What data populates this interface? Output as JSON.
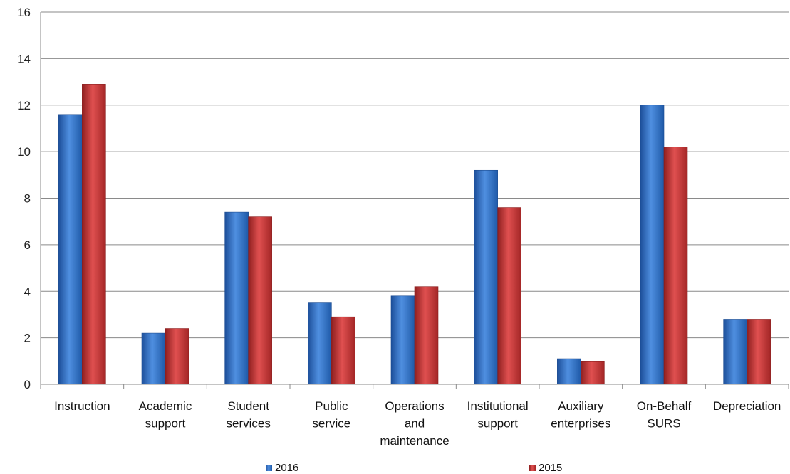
{
  "chart_data": {
    "type": "bar",
    "categories": [
      [
        "Instruction"
      ],
      [
        "Academic",
        "support"
      ],
      [
        "Student",
        "services"
      ],
      [
        "Public",
        "service"
      ],
      [
        "Operations",
        "and",
        "maintenance"
      ],
      [
        "Institutional",
        "support"
      ],
      [
        "Auxiliary",
        "enterprises"
      ],
      [
        "On-Behalf",
        "SURS"
      ],
      [
        "Depreciation"
      ]
    ],
    "series": [
      {
        "name": "2016",
        "color": "#3a78c8",
        "values": [
          11.6,
          2.2,
          7.4,
          3.5,
          3.8,
          9.2,
          1.1,
          12.0,
          2.8
        ]
      },
      {
        "name": "2015",
        "color": "#c83a3a",
        "values": [
          12.9,
          2.4,
          7.2,
          2.9,
          4.2,
          7.6,
          1.0,
          10.2,
          2.8
        ]
      }
    ],
    "ylim": [
      0,
      16
    ],
    "yticks": [
      0,
      2,
      4,
      6,
      8,
      10,
      12,
      14,
      16
    ],
    "grid": true,
    "legend_position": "bottom",
    "title": "",
    "xlabel": "",
    "ylabel": ""
  }
}
